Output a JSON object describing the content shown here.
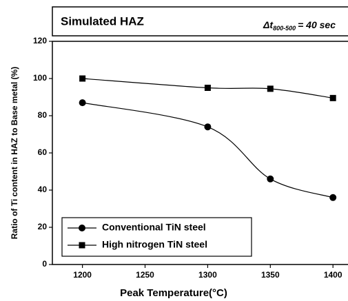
{
  "chart_data": {
    "type": "line",
    "title": "Simulated HAZ",
    "annotation": {
      "symbol": "Δt",
      "subscript": "800-500",
      "text": "= 40 sec"
    },
    "x_label": "Peak Temperature(°C)",
    "y_label": "Ratio of Ti content in HAZ to Base metal (%)",
    "x": [
      1200,
      1300,
      1350,
      1400
    ],
    "series": [
      {
        "name": "Conventional TiN steel",
        "color": "#000000",
        "marker": "circle",
        "values": [
          87,
          74,
          46,
          36
        ]
      },
      {
        "name": "High nitrogen TiN steel",
        "color": "#000000",
        "marker": "square",
        "values": [
          100,
          95,
          94.5,
          89.5
        ]
      }
    ],
    "xlim": [
      1176,
      1412
    ],
    "xticks": [
      1200,
      1250,
      1300,
      1350,
      1400
    ],
    "ylim": [
      0,
      120
    ],
    "yticks": [
      0,
      20,
      40,
      60,
      80,
      100,
      120
    ],
    "legend": "lower left",
    "grid": false
  }
}
